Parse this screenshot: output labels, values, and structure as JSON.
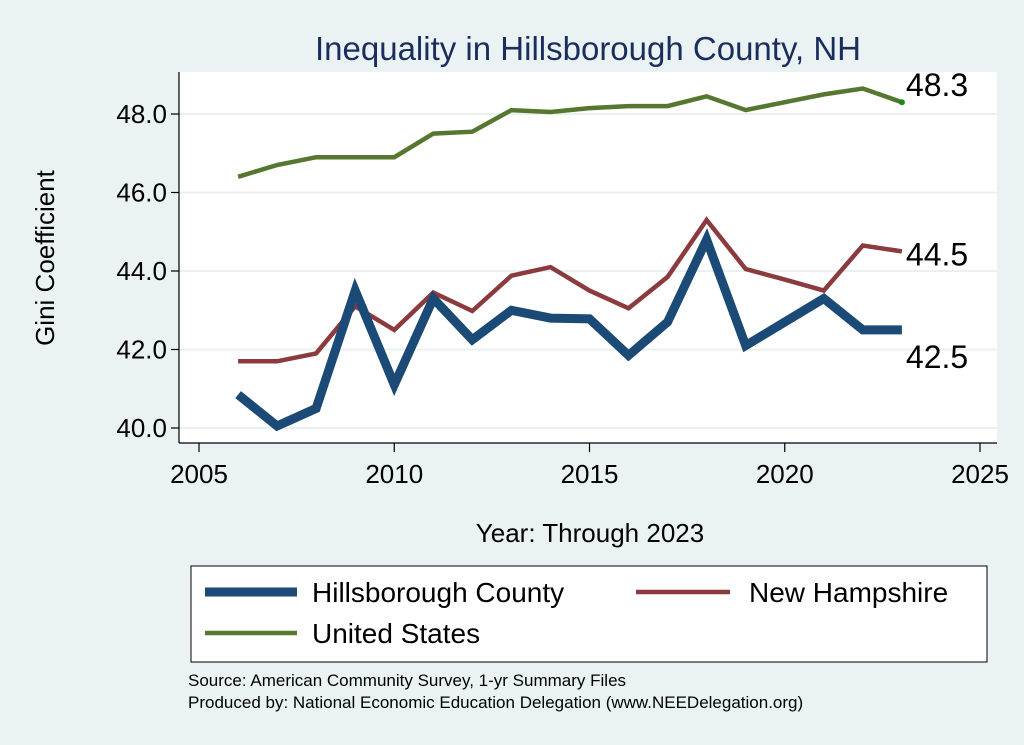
{
  "chart_data": {
    "type": "line",
    "title": "Inequality in Hillsborough County, NH",
    "xlabel": "Year: Through 2023",
    "ylabel": "Gini Coefficient",
    "xlim": [
      2005,
      2025
    ],
    "ylim": [
      40.0,
      49.0
    ],
    "x_ticks": [
      "2005",
      "2010",
      "2015",
      "2020",
      "2025"
    ],
    "y_ticks": [
      "40.0",
      "42.0",
      "44.0",
      "46.0",
      "48.0"
    ],
    "grid": true,
    "legend_position": "bottom",
    "x": [
      2006,
      2007,
      2008,
      2009,
      2010,
      2011,
      2012,
      2013,
      2014,
      2015,
      2016,
      2017,
      2018,
      2019,
      2020,
      2021,
      2022,
      2023
    ],
    "series": [
      {
        "name": "Hillsborough County",
        "color": "#1a4a75",
        "values": [
          40.85,
          40.05,
          40.5,
          43.5,
          41.1,
          43.3,
          42.25,
          43.0,
          42.8,
          42.78,
          41.85,
          42.7,
          44.8,
          42.1,
          42.7,
          43.3,
          42.5,
          42.5
        ],
        "end_label": "42.5"
      },
      {
        "name": "New Hampshire",
        "color": "#8b3a3e",
        "values": [
          41.7,
          41.7,
          41.9,
          43.1,
          42.5,
          43.45,
          42.98,
          43.88,
          44.1,
          43.5,
          43.05,
          43.85,
          45.3,
          44.05,
          43.78,
          43.5,
          44.65,
          44.5
        ],
        "end_label": "44.5"
      },
      {
        "name": "United States",
        "color": "#55772f",
        "values": [
          46.4,
          46.7,
          46.9,
          46.9,
          46.9,
          47.5,
          47.55,
          48.1,
          48.05,
          48.15,
          48.2,
          48.2,
          48.45,
          48.1,
          48.3,
          48.5,
          48.65,
          48.3
        ],
        "end_label": "48.3"
      }
    ],
    "annotations": [
      "Source: American Community Survey, 1-yr Summary Files",
      "Produced by: National Economic Education Delegation (www.NEEDelegation.org)"
    ]
  }
}
